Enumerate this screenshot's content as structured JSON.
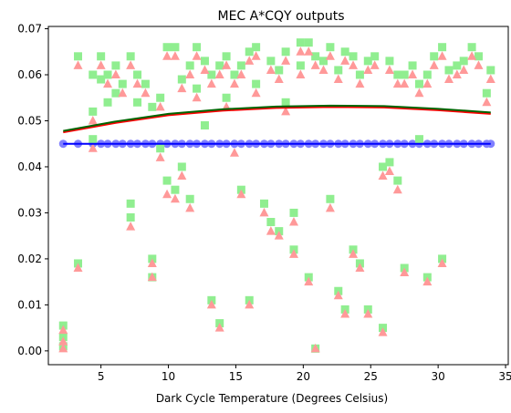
{
  "chart_data": {
    "type": "scatter",
    "title": "MEC A*CQY outputs",
    "xlabel": "Dark Cycle Temperature (Degrees Celsius)",
    "ylabel": "",
    "xlim": [
      1.1,
      35.2
    ],
    "ylim": [
      -0.003,
      0.0705
    ],
    "xticks": [
      5,
      10,
      15,
      20,
      25,
      30,
      35
    ],
    "yticks": [
      0.0,
      0.01,
      0.02,
      0.03,
      0.04,
      0.05,
      0.06,
      0.07
    ],
    "ytick_labels": [
      "0.00",
      "0.01",
      "0.02",
      "0.03",
      "0.04",
      "0.05",
      "0.06",
      "0.07"
    ],
    "grid": false,
    "colors": {
      "green_squares": "#90ee90",
      "pink_triangles": "#ff9999",
      "blue_circles": "#8080ff",
      "blue_line": "#0000ff",
      "red_curve": "#ff0000",
      "green_curve": "#006400"
    },
    "series": [
      {
        "marker": "circle",
        "color": "#8080ff",
        "x": [
          2.2,
          3.3,
          4.4,
          5.0,
          5.5,
          6.1,
          6.6,
          7.2,
          7.7,
          8.3,
          8.8,
          9.4,
          9.9,
          10.5,
          11.0,
          11.6,
          12.1,
          12.7,
          13.2,
          13.8,
          14.3,
          14.9,
          15.4,
          16.0,
          16.5,
          17.1,
          17.6,
          18.2,
          18.7,
          19.3,
          19.8,
          20.4,
          20.9,
          21.5,
          22.0,
          22.6,
          23.1,
          23.7,
          24.2,
          24.8,
          25.3,
          25.9,
          26.4,
          27.0,
          27.5,
          28.1,
          28.6,
          29.2,
          29.7,
          30.3,
          30.8,
          31.4,
          31.9,
          32.5,
          33.0,
          33.6,
          33.9
        ],
        "y": 0.045
      },
      {
        "marker": "square",
        "color": "#90ee90",
        "x": [
          2.2,
          2.2,
          2.2,
          3.3,
          3.3,
          4.4,
          4.4,
          4.4,
          5.0,
          5.0,
          5.5,
          5.5,
          6.1,
          6.1,
          6.6,
          7.2,
          7.2,
          7.2,
          7.7,
          7.7,
          8.3,
          8.8,
          8.8,
          8.8,
          9.4,
          9.4,
          9.9,
          9.9,
          10.5,
          10.5,
          11.0,
          11.0,
          11.6,
          11.6,
          12.1,
          12.1,
          12.7,
          12.7,
          13.2,
          13.2,
          13.8,
          13.8,
          14.3,
          14.3,
          14.9,
          15.4,
          15.4,
          16.0,
          16.0,
          16.5,
          16.5,
          17.1,
          17.6,
          17.6,
          18.2,
          18.2,
          18.7,
          18.7,
          19.3,
          19.3,
          19.8,
          19.8,
          20.4,
          20.4,
          20.9,
          20.9,
          21.5,
          22.0,
          22.0,
          22.6,
          22.6,
          23.1,
          23.1,
          23.7,
          23.7,
          24.2,
          24.2,
          24.8,
          24.8,
          25.3,
          25.9,
          25.9,
          26.4,
          26.4,
          27.0,
          27.0,
          27.5,
          27.5,
          28.1,
          28.6,
          28.6,
          29.2,
          29.2,
          29.7,
          30.3,
          30.3,
          30.8,
          31.4,
          31.9,
          32.5,
          33.0,
          33.6,
          33.9
        ],
        "y": [
          0.0055,
          0.003,
          0.001,
          0.064,
          0.019,
          0.052,
          0.046,
          0.06,
          0.064,
          0.059,
          0.06,
          0.054,
          0.062,
          0.056,
          0.058,
          0.064,
          0.032,
          0.029,
          0.06,
          0.054,
          0.058,
          0.02,
          0.016,
          0.053,
          0.055,
          0.044,
          0.066,
          0.037,
          0.066,
          0.035,
          0.059,
          0.04,
          0.062,
          0.033,
          0.066,
          0.057,
          0.063,
          0.049,
          0.06,
          0.011,
          0.062,
          0.006,
          0.064,
          0.055,
          0.06,
          0.062,
          0.035,
          0.065,
          0.011,
          0.066,
          0.058,
          0.032,
          0.063,
          0.028,
          0.061,
          0.026,
          0.065,
          0.054,
          0.03,
          0.022,
          0.067,
          0.062,
          0.067,
          0.016,
          0.064,
          0.0005,
          0.063,
          0.066,
          0.033,
          0.061,
          0.013,
          0.065,
          0.009,
          0.064,
          0.022,
          0.06,
          0.019,
          0.063,
          0.009,
          0.064,
          0.005,
          0.04,
          0.063,
          0.041,
          0.06,
          0.037,
          0.06,
          0.018,
          0.062,
          0.058,
          0.046,
          0.06,
          0.016,
          0.064,
          0.066,
          0.02,
          0.061,
          0.062,
          0.063,
          0.066,
          0.064,
          0.056,
          0.061
        ]
      },
      {
        "marker": "triangle",
        "color": "#ff9999",
        "x": [
          2.2,
          2.2,
          2.2,
          3.3,
          3.3,
          4.4,
          4.4,
          5.0,
          5.5,
          6.1,
          6.6,
          7.2,
          7.2,
          7.7,
          8.3,
          8.8,
          8.8,
          9.4,
          9.4,
          9.9,
          9.9,
          10.5,
          10.5,
          11.0,
          11.0,
          11.6,
          11.6,
          12.1,
          12.1,
          12.7,
          13.2,
          13.2,
          13.8,
          13.8,
          14.3,
          14.3,
          14.9,
          14.9,
          15.4,
          15.4,
          16.0,
          16.0,
          16.5,
          16.5,
          17.1,
          17.6,
          17.6,
          18.2,
          18.2,
          18.7,
          18.7,
          19.3,
          19.3,
          19.8,
          19.8,
          20.4,
          20.4,
          20.9,
          20.9,
          21.5,
          22.0,
          22.0,
          22.6,
          22.6,
          23.1,
          23.1,
          23.7,
          23.7,
          24.2,
          24.2,
          24.8,
          24.8,
          25.3,
          25.9,
          25.9,
          26.4,
          26.4,
          27.0,
          27.0,
          27.5,
          27.5,
          28.1,
          28.6,
          29.2,
          29.2,
          29.7,
          30.3,
          30.3,
          30.8,
          31.4,
          31.9,
          32.5,
          33.0,
          33.6,
          33.9
        ],
        "y": [
          0.0045,
          0.002,
          0.0005,
          0.062,
          0.018,
          0.05,
          0.044,
          0.062,
          0.058,
          0.06,
          0.056,
          0.062,
          0.027,
          0.058,
          0.056,
          0.019,
          0.016,
          0.053,
          0.042,
          0.064,
          0.034,
          0.064,
          0.033,
          0.057,
          0.038,
          0.06,
          0.031,
          0.064,
          0.055,
          0.061,
          0.058,
          0.01,
          0.06,
          0.005,
          0.062,
          0.053,
          0.058,
          0.043,
          0.06,
          0.034,
          0.063,
          0.01,
          0.064,
          0.056,
          0.03,
          0.061,
          0.026,
          0.059,
          0.025,
          0.063,
          0.052,
          0.028,
          0.021,
          0.065,
          0.06,
          0.065,
          0.015,
          0.062,
          0.0005,
          0.061,
          0.064,
          0.031,
          0.059,
          0.012,
          0.063,
          0.008,
          0.062,
          0.021,
          0.058,
          0.018,
          0.061,
          0.008,
          0.062,
          0.004,
          0.038,
          0.061,
          0.039,
          0.058,
          0.035,
          0.058,
          0.017,
          0.06,
          0.056,
          0.058,
          0.015,
          0.062,
          0.064,
          0.019,
          0.059,
          0.06,
          0.061,
          0.064,
          0.062,
          0.054,
          0.059
        ]
      },
      {
        "kind": "line",
        "color": "#0000ff",
        "x": [
          2.2,
          33.9
        ],
        "y": [
          0.045,
          0.045
        ]
      },
      {
        "kind": "line",
        "color": "#ff0000",
        "x": [
          2.2,
          6,
          10,
          14,
          18,
          22,
          26,
          30,
          33.9
        ],
        "y": [
          0.0475,
          0.0495,
          0.0512,
          0.0522,
          0.0528,
          0.053,
          0.0529,
          0.0523,
          0.0515
        ]
      },
      {
        "kind": "line",
        "color": "#006400",
        "x": [
          2.2,
          6,
          10,
          14,
          18,
          22,
          26,
          30,
          33.9
        ],
        "y": [
          0.0478,
          0.0498,
          0.0515,
          0.0525,
          0.0531,
          0.0533,
          0.0532,
          0.0526,
          0.0518
        ]
      }
    ]
  }
}
